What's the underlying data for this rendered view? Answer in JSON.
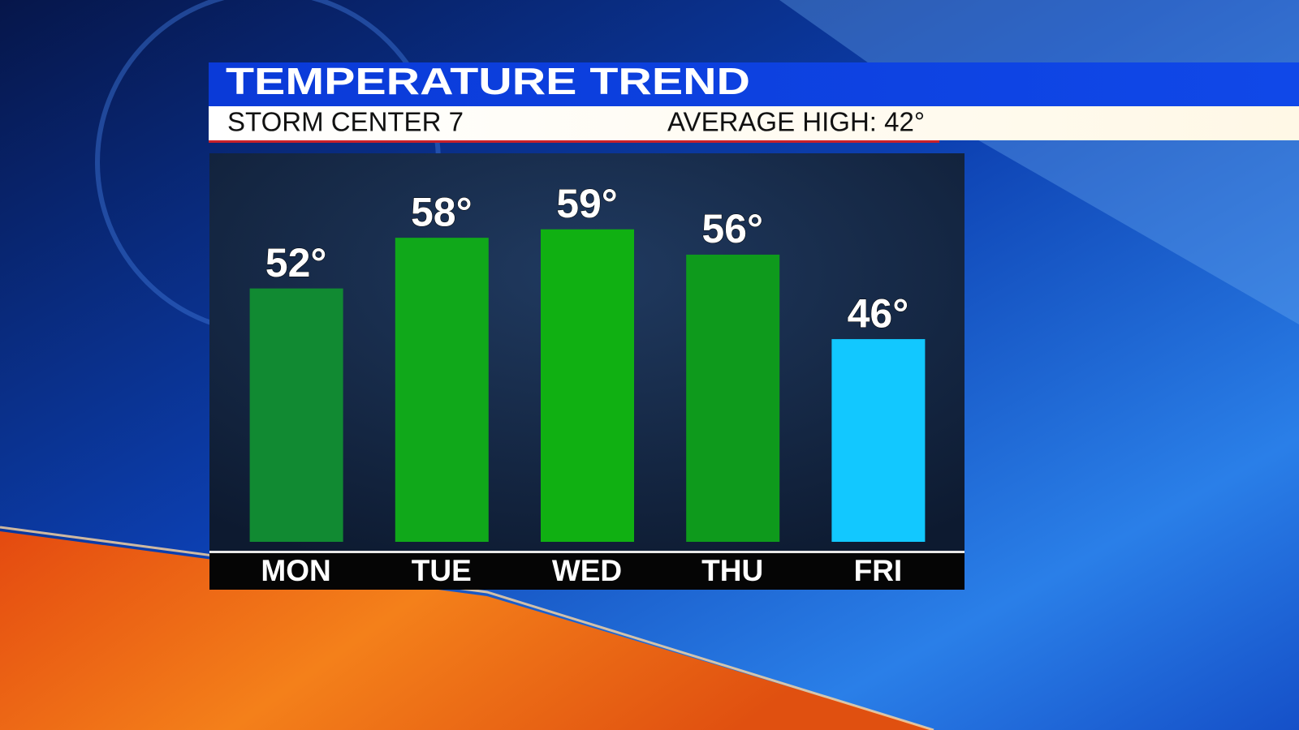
{
  "chart_data": {
    "type": "bar",
    "title": "TEMPERATURE TREND",
    "subtitle": "STORM CENTER 7",
    "annotation": "AVERAGE HIGH: 42°",
    "categories": [
      "MON",
      "TUE",
      "WED",
      "THU",
      "FRI"
    ],
    "series": [
      {
        "values": [
          52,
          58,
          59,
          56,
          46
        ],
        "value_labels": [
          "52°",
          "58°",
          "59°",
          "56°",
          "46°"
        ],
        "colors": [
          "#118a32",
          "#10a81a",
          "#10b012",
          "#0e9a1c",
          "#12c8ff"
        ]
      }
    ],
    "ylim": [
      22,
      68
    ]
  }
}
